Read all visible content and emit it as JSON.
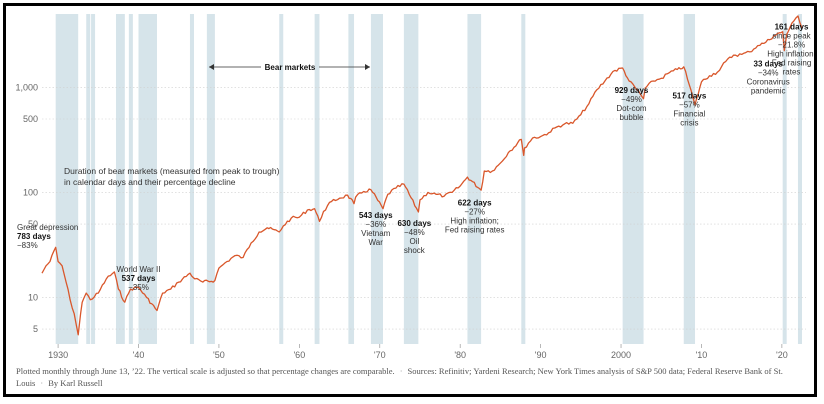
{
  "chart_data": {
    "type": "line",
    "title": "",
    "xlabel": "",
    "ylabel": "",
    "scale": "log",
    "xlim": [
      1928,
      2023
    ],
    "ylim": [
      3.6,
      5000
    ],
    "grid": true,
    "series_color": "#d9572b",
    "band_color": "#d6e4ea",
    "y_ticks": [
      {
        "v": 5,
        "label": "5"
      },
      {
        "v": 10,
        "label": "10"
      },
      {
        "v": 50,
        "label": "50"
      },
      {
        "v": 100,
        "label": "100"
      },
      {
        "v": 500,
        "label": "500"
      },
      {
        "v": 1000,
        "label": "1,000"
      }
    ],
    "x_ticks": [
      {
        "v": 1930,
        "label": "1930"
      },
      {
        "v": 1940,
        "label": "'40"
      },
      {
        "v": 1950,
        "label": "'50"
      },
      {
        "v": 1960,
        "label": "'60"
      },
      {
        "v": 1970,
        "label": "'70"
      },
      {
        "v": 1980,
        "label": "'80"
      },
      {
        "v": 1990,
        "label": "'90"
      },
      {
        "v": 2000,
        "label": "2000"
      },
      {
        "v": 2010,
        "label": "'10"
      },
      {
        "v": 2020,
        "label": "'20"
      }
    ],
    "bear_markets": [
      [
        1929.7,
        1932.5
      ],
      [
        1933.5,
        1933.8
      ],
      [
        1934.1,
        1934.6
      ],
      [
        1937.2,
        1938.3
      ],
      [
        1938.8,
        1939.3
      ],
      [
        1940.0,
        1942.3
      ],
      [
        1946.4,
        1946.8
      ],
      [
        1948.5,
        1949.5
      ],
      [
        1957.5,
        1957.9
      ],
      [
        1961.9,
        1962.5
      ],
      [
        1966.1,
        1966.8
      ],
      [
        1968.9,
        1970.4
      ],
      [
        1973.0,
        1974.8
      ],
      [
        1980.9,
        1982.6
      ],
      [
        1987.6,
        1987.9
      ],
      [
        2000.2,
        2002.8
      ],
      [
        2007.8,
        2009.2
      ],
      [
        2020.1,
        2020.3
      ],
      [
        2022.0,
        2022.5
      ]
    ],
    "series": [
      {
        "name": "",
        "x": [
          1928.0,
          1928.5,
          1929.0,
          1929.7,
          1930.0,
          1930.5,
          1931.0,
          1931.5,
          1932.0,
          1932.5,
          1932.8,
          1933.0,
          1933.5,
          1934.0,
          1935.0,
          1936.0,
          1937.0,
          1937.5,
          1938.3,
          1939.0,
          1940.0,
          1941.0,
          1942.3,
          1943.0,
          1944.0,
          1945.0,
          1946.4,
          1947.0,
          1948.0,
          1949.5,
          1950.0,
          1951.0,
          1952.0,
          1953.0,
          1954.0,
          1955.0,
          1956.0,
          1957.5,
          1958.0,
          1959.0,
          1960.0,
          1961.0,
          1961.9,
          1962.5,
          1963.0,
          1964.0,
          1965.0,
          1966.0,
          1966.8,
          1967.0,
          1968.0,
          1968.9,
          1970.4,
          1971.0,
          1972.0,
          1973.0,
          1974.8,
          1975.0,
          1976.0,
          1977.0,
          1978.0,
          1979.0,
          1980.0,
          1980.9,
          1982.6,
          1983.0,
          1984.0,
          1985.0,
          1986.0,
          1987.6,
          1987.9,
          1988.0,
          1989.0,
          1990.0,
          1991.0,
          1992.0,
          1993.0,
          1994.0,
          1995.0,
          1996.0,
          1997.0,
          1998.0,
          1999.0,
          2000.2,
          2001.0,
          2002.0,
          2002.8,
          2003.0,
          2004.0,
          2005.0,
          2006.0,
          2007.0,
          2007.8,
          2008.5,
          2009.2,
          2010.0,
          2011.0,
          2012.0,
          2013.0,
          2014.0,
          2015.0,
          2016.0,
          2017.0,
          2018.0,
          2019.0,
          2020.1,
          2020.3,
          2020.6,
          2021.0,
          2021.5,
          2022.0,
          2022.5
        ],
        "values": [
          17,
          20,
          22,
          30,
          22,
          20,
          14,
          9.5,
          7,
          4.4,
          7,
          9,
          11,
          9.5,
          11,
          15,
          17.5,
          12,
          9,
          12,
          12.5,
          10,
          7.5,
          11,
          12,
          14,
          17,
          15,
          14,
          14.5,
          19,
          22,
          25,
          24,
          33,
          42,
          46,
          42,
          48,
          57,
          58,
          68,
          70,
          53,
          66,
          82,
          88,
          94,
          78,
          90,
          102,
          106,
          70,
          96,
          110,
          120,
          65,
          85,
          100,
          96,
          92,
          100,
          115,
          140,
          105,
          160,
          160,
          190,
          240,
          320,
          225,
          265,
          330,
          340,
          370,
          420,
          450,
          455,
          550,
          700,
          950,
          1150,
          1420,
          1530,
          1150,
          950,
          780,
          980,
          1150,
          1220,
          1380,
          1480,
          1570,
          1050,
          680,
          1130,
          1290,
          1400,
          1760,
          2030,
          2060,
          2180,
          2500,
          2690,
          3100,
          3390,
          2240,
          3200,
          3700,
          4300,
          4800,
          3670
        ]
      }
    ],
    "annotations": [
      {
        "x": 1926,
        "y": 44,
        "head": "",
        "lines": [
          "Great depression"
        ]
      },
      {
        "x": 1926,
        "y": 36,
        "head": "783 days",
        "lines": [
          "−83%"
        ]
      },
      {
        "x": 1940,
        "y": 17.5,
        "head": "",
        "lines": [
          "World War II"
        ]
      },
      {
        "x": 1940,
        "y": 14.3,
        "head": "537 days",
        "lines": [
          "−35%"
        ]
      },
      {
        "x": 1969.5,
        "y": 57,
        "head": "543 days",
        "lines": [
          "−36%",
          "Vietnam",
          "War"
        ]
      },
      {
        "x": 1974.3,
        "y": 48,
        "head": "630 days",
        "lines": [
          "−48%",
          "Oil",
          "shock"
        ]
      },
      {
        "x": 1981.8,
        "y": 75,
        "head": "622 days",
        "lines": [
          "−27%",
          "High inflation;",
          "Fed raising rates"
        ]
      },
      {
        "x": 2001.3,
        "y": 880,
        "head": "929 days",
        "lines": [
          "−49%",
          "Dot-com",
          "bubble"
        ]
      },
      {
        "x": 2008.5,
        "y": 780,
        "head": "517 days",
        "lines": [
          "−57%",
          "Financial",
          "crisis"
        ]
      },
      {
        "x": 2018.3,
        "y": 1580,
        "head": "33 days",
        "lines": [
          "−34%",
          "Coronavirus",
          "pandemic"
        ]
      },
      {
        "x": 2021.2,
        "y": 3550,
        "head": "161 days",
        "lines": [
          "since peak",
          "−21.8%",
          "High inflation;",
          "Fed raising",
          "rates"
        ]
      }
    ],
    "notes": {
      "bear_markets_label": "Bear markets",
      "duration_note_line1": "Duration of bear markets (measured from peak to trough)",
      "duration_note_line2": "in calendar days and their percentage decline"
    }
  },
  "footer": {
    "plotted": "Plotted monthly through June 13, ’22. The vertical scale is adjusted so that percentage changes are comparable.",
    "sources": "Sources: Refinitiv; Yardeni Research; New York Times analysis of S&P 500 data; Federal Reserve Bank of St. Louis",
    "byline": "By Karl Russell"
  }
}
